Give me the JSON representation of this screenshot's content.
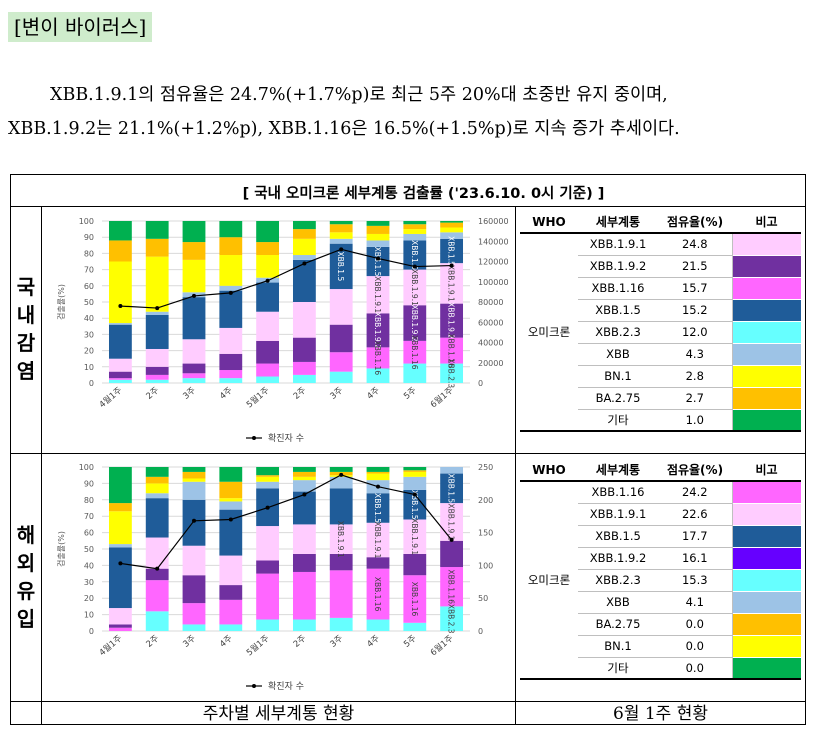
{
  "section_title": "[변이 바이러스]",
  "paragraph": {
    "line1": "XBB.1.9.1의 점유율은 24.7%(+1.7%p)로 최근 5주 20%대 초중반 유지 중이며,",
    "line2": "XBB.1.9.2는 21.1%(+1.2%p), XBB.1.16은 16.5%(+1.5%p)로 지속 증가 추세이다."
  },
  "figure_title": "[ 국내 오미크론 세부계통 검출률 ('23.6.10. 0시 기준) ]",
  "row_labels": {
    "domestic": "국내감염",
    "overseas": "해외유입"
  },
  "footer": {
    "left": "주차별 세부계통 현황",
    "right": "6월 1주 현황"
  },
  "legend_line": "확진자 수",
  "table_headers": [
    "WHO",
    "세부계통",
    "점유율(%)",
    "비고"
  ],
  "table_group": "오미크론",
  "domestic_table": [
    {
      "lineage": "XBB.1.9.1",
      "share": "24.8",
      "color": "#ffccff"
    },
    {
      "lineage": "XBB.1.9.2",
      "share": "21.5",
      "color": "#7030a0"
    },
    {
      "lineage": "XBB.1.16",
      "share": "15.7",
      "color": "#ff66ff"
    },
    {
      "lineage": "XBB.1.5",
      "share": "15.2",
      "color": "#1f5c99"
    },
    {
      "lineage": "XBB.2.3",
      "share": "12.0",
      "color": "#66ffff"
    },
    {
      "lineage": "XBB",
      "share": "4.3",
      "color": "#9dc3e6"
    },
    {
      "lineage": "BN.1",
      "share": "2.8",
      "color": "#ffff00"
    },
    {
      "lineage": "BA.2.75",
      "share": "2.7",
      "color": "#ffc000"
    },
    {
      "lineage": "기타",
      "share": "1.0",
      "color": "#00b050"
    }
  ],
  "overseas_table": [
    {
      "lineage": "XBB.1.16",
      "share": "24.2",
      "color": "#ff66ff"
    },
    {
      "lineage": "XBB.1.9.1",
      "share": "22.6",
      "color": "#ffccff"
    },
    {
      "lineage": "XBB.1.5",
      "share": "17.7",
      "color": "#1f5c99"
    },
    {
      "lineage": "XBB.1.9.2",
      "share": "16.1",
      "color": "#6600ff"
    },
    {
      "lineage": "XBB.2.3",
      "share": "15.3",
      "color": "#66ffff"
    },
    {
      "lineage": "XBB",
      "share": "4.1",
      "color": "#9dc3e6"
    },
    {
      "lineage": "BA.2.75",
      "share": "0.0",
      "color": "#ffc000"
    },
    {
      "lineage": "BN.1",
      "share": "0.0",
      "color": "#ffff00"
    },
    {
      "lineage": "기타",
      "share": "0.0",
      "color": "#00b050"
    }
  ],
  "chart_data": [
    {
      "type": "bar",
      "title": "국내감염",
      "stacked": true,
      "ylabel": "검출률(%)",
      "ylim": [
        0,
        100
      ],
      "y2lim": [
        0,
        160000
      ],
      "y2ticks": [
        "0",
        "20000",
        "40000",
        "60000",
        "80000",
        "100000",
        "120000",
        "140000",
        "160000"
      ],
      "categories": [
        "4월1주",
        "2주",
        "3주",
        "4주",
        "5월1주",
        "2주",
        "3주",
        "4주",
        "5주",
        "6월1주"
      ],
      "series": [
        {
          "name": "XBB.2.3",
          "color": "#66ffff",
          "values": [
            2,
            2,
            3,
            3,
            4,
            5,
            7,
            9,
            12,
            12
          ]
        },
        {
          "name": "XBB.1.16",
          "color": "#ff66ff",
          "values": [
            1,
            3,
            3,
            5,
            8,
            8,
            12,
            13,
            14,
            16
          ]
        },
        {
          "name": "XBB.1.9.2",
          "color": "#7030a0",
          "values": [
            4,
            5,
            6,
            10,
            14,
            15,
            17,
            21,
            22,
            21
          ]
        },
        {
          "name": "XBB.1.9.1",
          "color": "#ffccff",
          "values": [
            8,
            11,
            15,
            16,
            18,
            22,
            22,
            23,
            22,
            25
          ]
        },
        {
          "name": "XBB.1.5",
          "color": "#1f5c99",
          "values": [
            21,
            21,
            26,
            23,
            18,
            26,
            28,
            18,
            18,
            15
          ]
        },
        {
          "name": "XBB",
          "color": "#9dc3e6",
          "values": [
            1,
            2,
            3,
            3,
            3,
            3,
            3,
            4,
            4,
            4
          ]
        },
        {
          "name": "BN.1",
          "color": "#ffff00",
          "values": [
            38,
            34,
            20,
            19,
            14,
            10,
            4,
            4,
            3,
            3
          ]
        },
        {
          "name": "BA.2.75",
          "color": "#ffc000",
          "values": [
            13,
            11,
            11,
            11,
            8,
            6,
            5,
            5,
            3,
            3
          ]
        },
        {
          "name": "기타",
          "color": "#00b050",
          "values": [
            12,
            11,
            13,
            10,
            13,
            5,
            2,
            3,
            2,
            1
          ]
        }
      ],
      "line": {
        "name": "확진자 수",
        "values": [
          76000,
          74000,
          86000,
          89000,
          101000,
          118000,
          132000,
          123000,
          115000,
          116000
        ]
      },
      "bar_labels": [
        {
          "series": "XBB.1.5",
          "start": 6,
          "text": "XBB.1.5"
        },
        {
          "series": "XBB.1.9.1",
          "start": 7,
          "text": "XBB.1.9.1"
        },
        {
          "series": "XBB.1.9.2",
          "start": 7,
          "text": "XBB.1.9.2"
        },
        {
          "series": "XBB.1.16",
          "start": 7,
          "text": "XBB.1.16"
        },
        {
          "series": "XBB.2.3",
          "start": 9,
          "text": "XBB.2.3"
        }
      ]
    },
    {
      "type": "bar",
      "title": "해외유입",
      "stacked": true,
      "ylabel": "검출률(%)",
      "ylim": [
        0,
        100
      ],
      "y2lim": [
        0,
        250
      ],
      "y2ticks": [
        "0",
        "50",
        "100",
        "150",
        "200",
        "250"
      ],
      "categories": [
        "4월1주",
        "2주",
        "3주",
        "4주",
        "5월1주",
        "2주",
        "3주",
        "4주",
        "5주",
        "6월1주"
      ],
      "series": [
        {
          "name": "XBB.2.3",
          "color": "#66ffff",
          "values": [
            0,
            12,
            4,
            4,
            7,
            7,
            8,
            7,
            5,
            15
          ]
        },
        {
          "name": "XBB.1.16",
          "color": "#ff66ff",
          "values": [
            2,
            19,
            13,
            15,
            28,
            29,
            29,
            31,
            29,
            24
          ]
        },
        {
          "name": "XBB.1.9.2",
          "color": "#7030a0",
          "values": [
            2,
            7,
            17,
            9,
            8,
            11,
            10,
            7,
            13,
            16
          ]
        },
        {
          "name": "XBB.1.9.1",
          "color": "#ffccff",
          "values": [
            10,
            19,
            18,
            18,
            21,
            18,
            18,
            21,
            21,
            23
          ]
        },
        {
          "name": "XBB.1.5",
          "color": "#1f5c99",
          "values": [
            37,
            24,
            28,
            28,
            23,
            20,
            22,
            18,
            18,
            18
          ]
        },
        {
          "name": "XBB",
          "color": "#9dc3e6",
          "values": [
            2,
            3,
            11,
            5,
            4,
            7,
            7,
            8,
            8,
            4
          ]
        },
        {
          "name": "BN.1",
          "color": "#ffff00",
          "values": [
            20,
            6,
            2,
            2,
            3,
            2,
            1,
            4,
            3,
            0
          ]
        },
        {
          "name": "BA.2.75",
          "color": "#ffc000",
          "values": [
            5,
            4,
            4,
            10,
            1,
            3,
            2,
            1,
            1,
            0
          ]
        },
        {
          "name": "기타",
          "color": "#00b050",
          "values": [
            22,
            6,
            3,
            9,
            5,
            3,
            3,
            3,
            2,
            0
          ]
        }
      ],
      "line": {
        "name": "확진자 수",
        "values": [
          103,
          95,
          168,
          170,
          188,
          208,
          238,
          220,
          208,
          139
        ]
      },
      "bar_labels": [
        {
          "series": "XBB.1.5",
          "start": 7,
          "text": "XBB.1.5"
        },
        {
          "series": "XBB.1.9.1",
          "start": 6,
          "text": "XBB.1.9.1"
        },
        {
          "series": "XBB.1.16",
          "start": 7,
          "text": "XBB.1.16"
        },
        {
          "series": "XBB.2.3",
          "start": 9,
          "text": "XBB.2.3"
        }
      ]
    }
  ]
}
